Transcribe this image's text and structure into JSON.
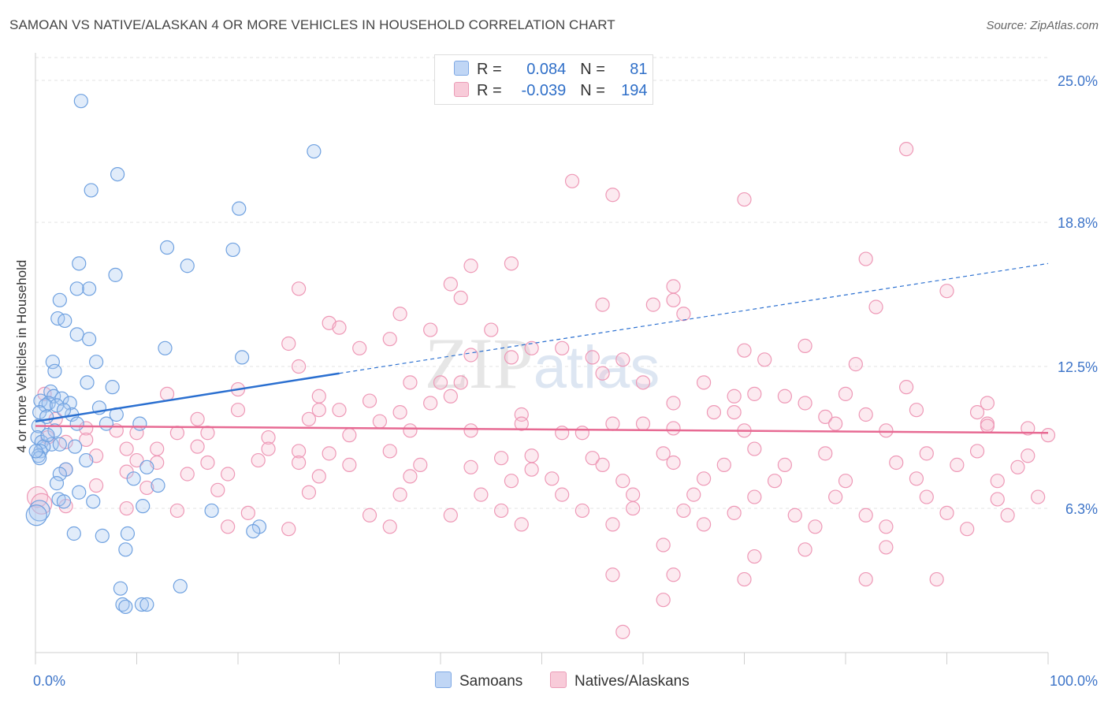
{
  "header": {
    "title": "SAMOAN VS NATIVE/ALASKAN 4 OR MORE VEHICLES IN HOUSEHOLD CORRELATION CHART",
    "source": "Source: ZipAtlas.com"
  },
  "legend": {
    "series": [
      {
        "name": "Samoans",
        "r_label": "R =",
        "r": "0.084",
        "n_label": "N =",
        "n": "81",
        "color": "#a9c8f0"
      },
      {
        "name": "Natives/Alaskans",
        "r_label": "R =",
        "r": "-0.039",
        "n_label": "N =",
        "n": "194",
        "color": "#f5b8cc"
      }
    ]
  },
  "watermark": "ZIPatlas",
  "chart_data": {
    "type": "scatter",
    "title": "SAMOAN VS NATIVE/ALASKAN 4 OR MORE VEHICLES IN HOUSEHOLD CORRELATION CHART",
    "xlabel": "",
    "ylabel": "4 or more Vehicles in Household",
    "xlim": [
      0,
      100
    ],
    "ylim": [
      0,
      26
    ],
    "x_tick_labels": [
      "0.0%",
      "100.0%"
    ],
    "y_ticks": [
      6.3,
      12.5,
      18.8,
      25.0
    ],
    "y_tick_labels": [
      "6.3%",
      "12.5%",
      "18.8%",
      "25.0%"
    ],
    "grid": true,
    "legend_position": "top-center",
    "colors": {
      "samoans": "#6fa1e0",
      "natives": "#ee98b6",
      "samoans_line": "#2a6fd0",
      "natives_line": "#e76a93",
      "tick_label": "#3d74c8"
    },
    "series": [
      {
        "name": "Samoans",
        "trend": {
          "x0": 0,
          "y0": 10.1,
          "x1": 30,
          "y1": 12.2,
          "dashed_to_x": 100,
          "dashed_to_y": 17.0
        },
        "points": [
          [
            4.5,
            24.1
          ],
          [
            5.5,
            20.2
          ],
          [
            8.1,
            20.9
          ],
          [
            27.5,
            21.9
          ],
          [
            20.1,
            19.4
          ],
          [
            13,
            17.7
          ],
          [
            19.5,
            17.6
          ],
          [
            15,
            16.9
          ],
          [
            4.3,
            17
          ],
          [
            7.9,
            16.5
          ],
          [
            5.3,
            15.9
          ],
          [
            4.1,
            15.9
          ],
          [
            2.4,
            15.4
          ],
          [
            2.2,
            14.6
          ],
          [
            2.9,
            14.5
          ],
          [
            4.1,
            13.9
          ],
          [
            5.3,
            13.7
          ],
          [
            12.8,
            13.3
          ],
          [
            20.4,
            12.9
          ],
          [
            1.7,
            12.7
          ],
          [
            6,
            12.7
          ],
          [
            1.9,
            12.3
          ],
          [
            5.1,
            11.8
          ],
          [
            7.6,
            11.6
          ],
          [
            1.5,
            11.4
          ],
          [
            1.8,
            11.2
          ],
          [
            2.6,
            11.1
          ],
          [
            0.5,
            11
          ],
          [
            1.3,
            10.9
          ],
          [
            3.4,
            10.9
          ],
          [
            1,
            10.8
          ],
          [
            2.1,
            10.8
          ],
          [
            6.3,
            10.7
          ],
          [
            0.4,
            10.5
          ],
          [
            3.6,
            10.4
          ],
          [
            8,
            10.4
          ],
          [
            1.1,
            10.3
          ],
          [
            10.3,
            10
          ],
          [
            4.1,
            10
          ],
          [
            0.3,
            9.9
          ],
          [
            7,
            10
          ],
          [
            1.9,
            9.7
          ],
          [
            0.2,
            9.4
          ],
          [
            0.6,
            9.2
          ],
          [
            1.6,
            9.1
          ],
          [
            3.9,
            9
          ],
          [
            0.8,
            9
          ],
          [
            2.4,
            9.1
          ],
          [
            0.5,
            8.8
          ],
          [
            0.3,
            8.6
          ],
          [
            0.4,
            8.5
          ],
          [
            5,
            8.4
          ],
          [
            11,
            8.1
          ],
          [
            3,
            8
          ],
          [
            2.4,
            7.8
          ],
          [
            9.7,
            7.6
          ],
          [
            2.1,
            7.4
          ],
          [
            12.1,
            7.3
          ],
          [
            4.3,
            7
          ],
          [
            2.3,
            6.7
          ],
          [
            2.8,
            6.6
          ],
          [
            5.7,
            6.6
          ],
          [
            10.6,
            6.4
          ],
          [
            17.4,
            6.2
          ],
          [
            0.4,
            6.2
          ],
          [
            0.1,
            6
          ],
          [
            22.1,
            5.5
          ],
          [
            21.5,
            5.3
          ],
          [
            3.8,
            5.2
          ],
          [
            9.1,
            5.2
          ],
          [
            6.6,
            5.1
          ],
          [
            8.9,
            4.5
          ],
          [
            14.3,
            2.9
          ],
          [
            8.4,
            2.8
          ],
          [
            8.6,
            2.1
          ],
          [
            8.9,
            2.0
          ],
          [
            10.5,
            2.1
          ],
          [
            11,
            2.1
          ],
          [
            0.05,
            8.8
          ],
          [
            1.2,
            9.5
          ],
          [
            2.8,
            10.6
          ]
        ]
      },
      {
        "name": "Natives/Alaskans",
        "trend": {
          "x0": 0,
          "y0": 9.9,
          "x1": 100,
          "y1": 9.6
        },
        "points": [
          [
            86,
            22
          ],
          [
            53,
            20.6
          ],
          [
            57,
            20
          ],
          [
            70,
            19.8
          ],
          [
            82,
            17.2
          ],
          [
            43,
            16.9
          ],
          [
            47,
            17
          ],
          [
            26,
            15.9
          ],
          [
            41,
            16.1
          ],
          [
            63,
            16
          ],
          [
            90,
            15.8
          ],
          [
            42,
            15.5
          ],
          [
            63,
            15.4
          ],
          [
            56,
            15.2
          ],
          [
            61,
            15.2
          ],
          [
            83,
            15.1
          ],
          [
            36,
            14.8
          ],
          [
            64,
            14.8
          ],
          [
            29,
            14.4
          ],
          [
            30,
            14.2
          ],
          [
            39,
            14.1
          ],
          [
            45,
            14.1
          ],
          [
            35,
            13.7
          ],
          [
            25,
            13.5
          ],
          [
            32,
            13.3
          ],
          [
            49,
            13.3
          ],
          [
            52,
            13.3
          ],
          [
            70,
            13.2
          ],
          [
            76,
            13.4
          ],
          [
            43,
            13
          ],
          [
            47,
            12.9
          ],
          [
            55,
            12.9
          ],
          [
            58,
            12.8
          ],
          [
            72,
            12.8
          ],
          [
            81,
            12.6
          ],
          [
            26,
            12.5
          ],
          [
            56,
            12.2
          ],
          [
            37,
            11.8
          ],
          [
            40,
            11.8
          ],
          [
            42,
            11.8
          ],
          [
            60,
            11.8
          ],
          [
            66,
            11.8
          ],
          [
            86,
            11.6
          ],
          [
            20,
            11.5
          ],
          [
            13,
            11.3
          ],
          [
            28,
            11.2
          ],
          [
            41,
            11.2
          ],
          [
            69,
            11.2
          ],
          [
            71,
            11.3
          ],
          [
            74,
            11.2
          ],
          [
            80,
            11.3
          ],
          [
            33,
            11
          ],
          [
            39,
            10.9
          ],
          [
            63,
            10.9
          ],
          [
            76,
            10.9
          ],
          [
            94,
            10.9
          ],
          [
            20,
            10.6
          ],
          [
            28,
            10.6
          ],
          [
            30,
            10.6
          ],
          [
            36,
            10.5
          ],
          [
            48,
            10.4
          ],
          [
            67,
            10.5
          ],
          [
            69,
            10.5
          ],
          [
            78,
            10.3
          ],
          [
            82,
            10.4
          ],
          [
            87,
            10.6
          ],
          [
            93,
            10.5
          ],
          [
            16,
            10.2
          ],
          [
            27,
            10.2
          ],
          [
            34,
            10.1
          ],
          [
            48,
            10
          ],
          [
            57,
            10
          ],
          [
            60,
            10
          ],
          [
            79,
            10
          ],
          [
            94,
            10
          ],
          [
            98,
            9.8
          ],
          [
            5,
            9.8
          ],
          [
            8,
            9.7
          ],
          [
            10,
            9.6
          ],
          [
            14,
            9.6
          ],
          [
            17,
            9.6
          ],
          [
            23,
            9.4
          ],
          [
            31,
            9.5
          ],
          [
            37,
            9.7
          ],
          [
            43,
            9.7
          ],
          [
            52,
            9.6
          ],
          [
            54,
            9.6
          ],
          [
            63,
            9.8
          ],
          [
            70,
            9.7
          ],
          [
            84,
            9.7
          ],
          [
            94,
            9.9
          ],
          [
            100,
            9.5
          ],
          [
            3,
            9.2
          ],
          [
            5,
            9.3
          ],
          [
            9,
            8.9
          ],
          [
            12,
            8.9
          ],
          [
            16,
            9
          ],
          [
            23,
            8.9
          ],
          [
            26,
            8.8
          ],
          [
            29,
            8.7
          ],
          [
            35,
            8.8
          ],
          [
            46,
            8.5
          ],
          [
            49,
            8.6
          ],
          [
            55,
            8.5
          ],
          [
            62,
            8.7
          ],
          [
            71,
            8.9
          ],
          [
            78,
            8.7
          ],
          [
            88,
            8.7
          ],
          [
            93,
            8.8
          ],
          [
            98,
            8.6
          ],
          [
            6,
            8.6
          ],
          [
            10,
            8.4
          ],
          [
            12,
            8.3
          ],
          [
            17,
            8.3
          ],
          [
            22,
            8.4
          ],
          [
            26,
            8.3
          ],
          [
            31,
            8.2
          ],
          [
            38,
            8.2
          ],
          [
            43,
            8.1
          ],
          [
            49,
            8
          ],
          [
            56,
            8.2
          ],
          [
            63,
            8.3
          ],
          [
            68,
            8.2
          ],
          [
            74,
            8.2
          ],
          [
            85,
            8.3
          ],
          [
            91,
            8.2
          ],
          [
            97,
            8.1
          ],
          [
            3,
            8
          ],
          [
            9,
            7.9
          ],
          [
            15,
            7.8
          ],
          [
            19,
            7.8
          ],
          [
            28,
            7.7
          ],
          [
            37,
            7.7
          ],
          [
            47,
            7.5
          ],
          [
            51,
            7.6
          ],
          [
            58,
            7.5
          ],
          [
            66,
            7.6
          ],
          [
            73,
            7.5
          ],
          [
            80,
            7.5
          ],
          [
            87,
            7.6
          ],
          [
            95,
            7.5
          ],
          [
            6,
            7.3
          ],
          [
            11,
            7.2
          ],
          [
            18,
            7.1
          ],
          [
            27,
            7
          ],
          [
            36,
            6.9
          ],
          [
            44,
            6.9
          ],
          [
            52,
            6.9
          ],
          [
            59,
            6.9
          ],
          [
            65,
            6.9
          ],
          [
            71,
            6.8
          ],
          [
            79,
            6.8
          ],
          [
            88,
            6.8
          ],
          [
            95,
            6.7
          ],
          [
            99,
            6.8
          ],
          [
            3,
            6.4
          ],
          [
            9,
            6.3
          ],
          [
            14,
            6.2
          ],
          [
            21,
            6.1
          ],
          [
            33,
            6
          ],
          [
            41,
            6
          ],
          [
            46,
            6.2
          ],
          [
            54,
            6.2
          ],
          [
            59,
            6.3
          ],
          [
            64,
            6.2
          ],
          [
            69,
            6.1
          ],
          [
            75,
            6
          ],
          [
            82,
            6
          ],
          [
            90,
            6.1
          ],
          [
            96,
            6
          ],
          [
            19,
            5.5
          ],
          [
            25,
            5.4
          ],
          [
            35,
            5.5
          ],
          [
            48,
            5.6
          ],
          [
            57,
            5.6
          ],
          [
            66,
            5.6
          ],
          [
            77,
            5.5
          ],
          [
            84,
            5.5
          ],
          [
            92,
            5.4
          ],
          [
            62,
            4.7
          ],
          [
            71,
            4.2
          ],
          [
            76,
            4.5
          ],
          [
            84,
            4.6
          ],
          [
            57,
            3.4
          ],
          [
            63,
            3.4
          ],
          [
            70,
            3.2
          ],
          [
            82,
            3.2
          ],
          [
            89,
            3.2
          ],
          [
            62,
            2.3
          ],
          [
            58,
            0.9
          ],
          [
            0.2,
            6.8
          ],
          [
            0.6,
            6.5
          ],
          [
            1.2,
            9.4
          ],
          [
            2,
            10.2
          ],
          [
            0.9,
            11.3
          ]
        ]
      }
    ]
  }
}
